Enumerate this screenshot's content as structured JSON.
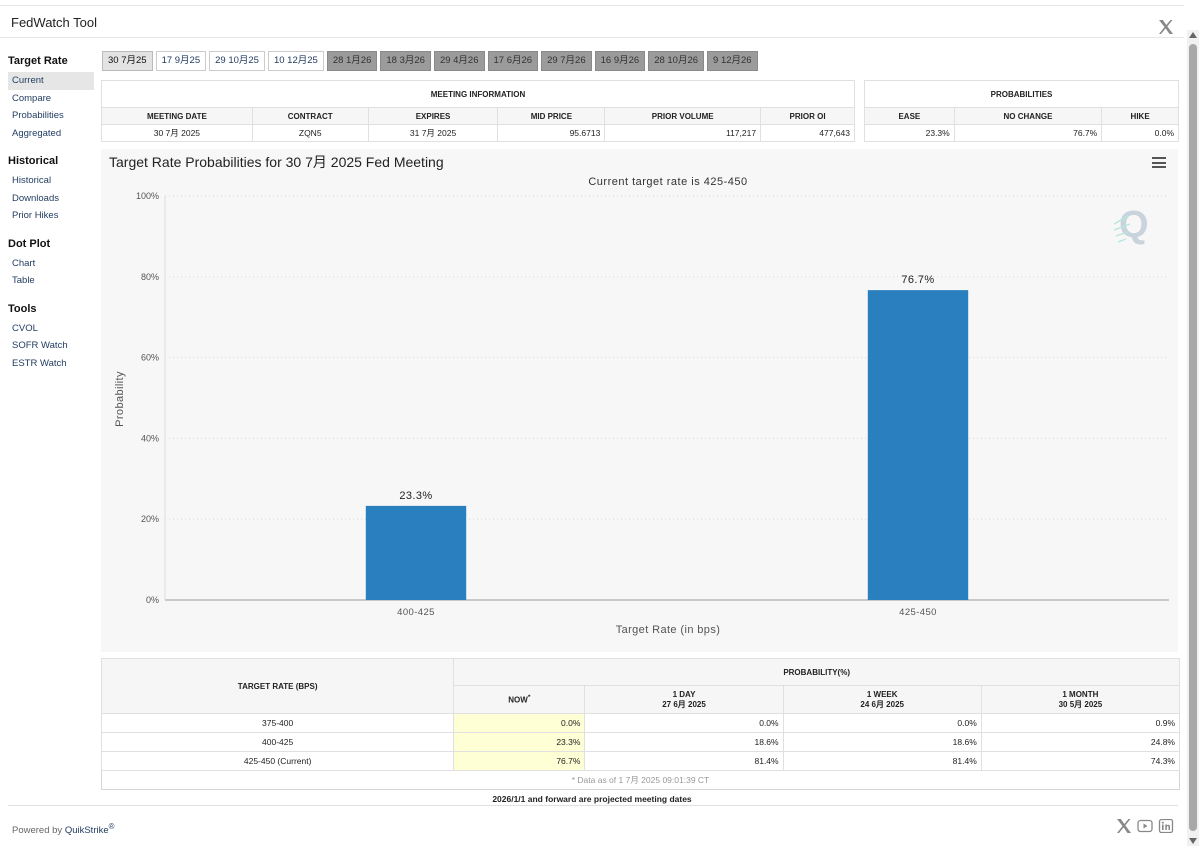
{
  "app_title": "FedWatch Tool",
  "sidebar": [
    {
      "heading": "Target Rate",
      "items": [
        "Current",
        "Compare",
        "Probabilities",
        "Aggregated"
      ]
    },
    {
      "heading": "Historical",
      "items": [
        "Historical",
        "Downloads",
        "Prior Hikes"
      ]
    },
    {
      "heading": "Dot Plot",
      "items": [
        "Chart",
        "Table"
      ]
    },
    {
      "heading": "Tools",
      "items": [
        "CVOL",
        "SOFR Watch",
        "ESTR Watch"
      ]
    }
  ],
  "sidebar_active": "Current",
  "tabs": [
    {
      "label": "30 7月25",
      "state": "selected"
    },
    {
      "label": "17 9月25",
      "state": "normal"
    },
    {
      "label": "29 10月25",
      "state": "normal"
    },
    {
      "label": "10 12月25",
      "state": "normal"
    },
    {
      "label": "28 1月26",
      "state": "future"
    },
    {
      "label": "18 3月26",
      "state": "future"
    },
    {
      "label": "29 4月26",
      "state": "future"
    },
    {
      "label": "17 6月26",
      "state": "future"
    },
    {
      "label": "29 7月26",
      "state": "future"
    },
    {
      "label": "16 9月26",
      "state": "future"
    },
    {
      "label": "28 10月26",
      "state": "future"
    },
    {
      "label": "9 12月26",
      "state": "future"
    }
  ],
  "meeting_info": {
    "caption": "MEETING INFORMATION",
    "headers": [
      "MEETING DATE",
      "CONTRACT",
      "EXPIRES",
      "MID PRICE",
      "PRIOR VOLUME",
      "PRIOR OI"
    ],
    "values": [
      "30 7月 2025",
      "ZQN5",
      "31 7月 2025",
      "95.6713",
      "117,217",
      "477,643"
    ]
  },
  "probabilities": {
    "caption": "PROBABILITIES",
    "headers": [
      "EASE",
      "NO CHANGE",
      "HIKE"
    ],
    "values": [
      "23.3%",
      "76.7%",
      "0.0%"
    ]
  },
  "chart_title": "Target Rate Probabilities for 30 7月 2025 Fed Meeting",
  "chart_data": {
    "type": "bar",
    "subtitle": "Current target rate is 425-450",
    "categories": [
      "400-425",
      "425-450"
    ],
    "values": [
      23.3,
      76.7
    ],
    "data_labels": [
      "23.3%",
      "76.7%"
    ],
    "xlabel": "Target Rate (in bps)",
    "ylabel": "Probability",
    "ylim": [
      0,
      100
    ],
    "yticks": [
      0,
      20,
      40,
      60,
      80,
      100
    ],
    "ytick_labels": [
      "0%",
      "20%",
      "40%",
      "60%",
      "80%",
      "100%"
    ],
    "grid": true,
    "bar_color": "#2a7fbf"
  },
  "prob_table": {
    "rate_header": "TARGET RATE (BPS)",
    "prob_header": "PROBABILITY(%)",
    "col_now": "NOW",
    "col_now_mark": "*",
    "cols": [
      {
        "label": "1 DAY",
        "date": "27 6月 2025"
      },
      {
        "label": "1 WEEK",
        "date": "24 6月 2025"
      },
      {
        "label": "1 MONTH",
        "date": "30 5月 2025"
      }
    ],
    "rows": [
      {
        "rate": "375-400",
        "now": "0.0%",
        "day": "0.0%",
        "week": "0.0%",
        "month": "0.9%"
      },
      {
        "rate": "400-425",
        "now": "23.3%",
        "day": "18.6%",
        "week": "18.6%",
        "month": "24.8%"
      },
      {
        "rate": "425-450 (Current)",
        "now": "76.7%",
        "day": "81.4%",
        "week": "81.4%",
        "month": "74.3%"
      }
    ],
    "footnote": "* Data as of 1 7月 2025 09:01:39 CT"
  },
  "projected_note": "2026/1/1 and forward are projected meeting dates",
  "powered_by": "Powered by",
  "powered_brand": "QuikStrike",
  "powered_reg": "®",
  "icons": {
    "close": "x-logo-icon",
    "menu": "hamburger-icon",
    "social": [
      "x-icon",
      "youtube-icon",
      "linkedin-icon"
    ]
  }
}
